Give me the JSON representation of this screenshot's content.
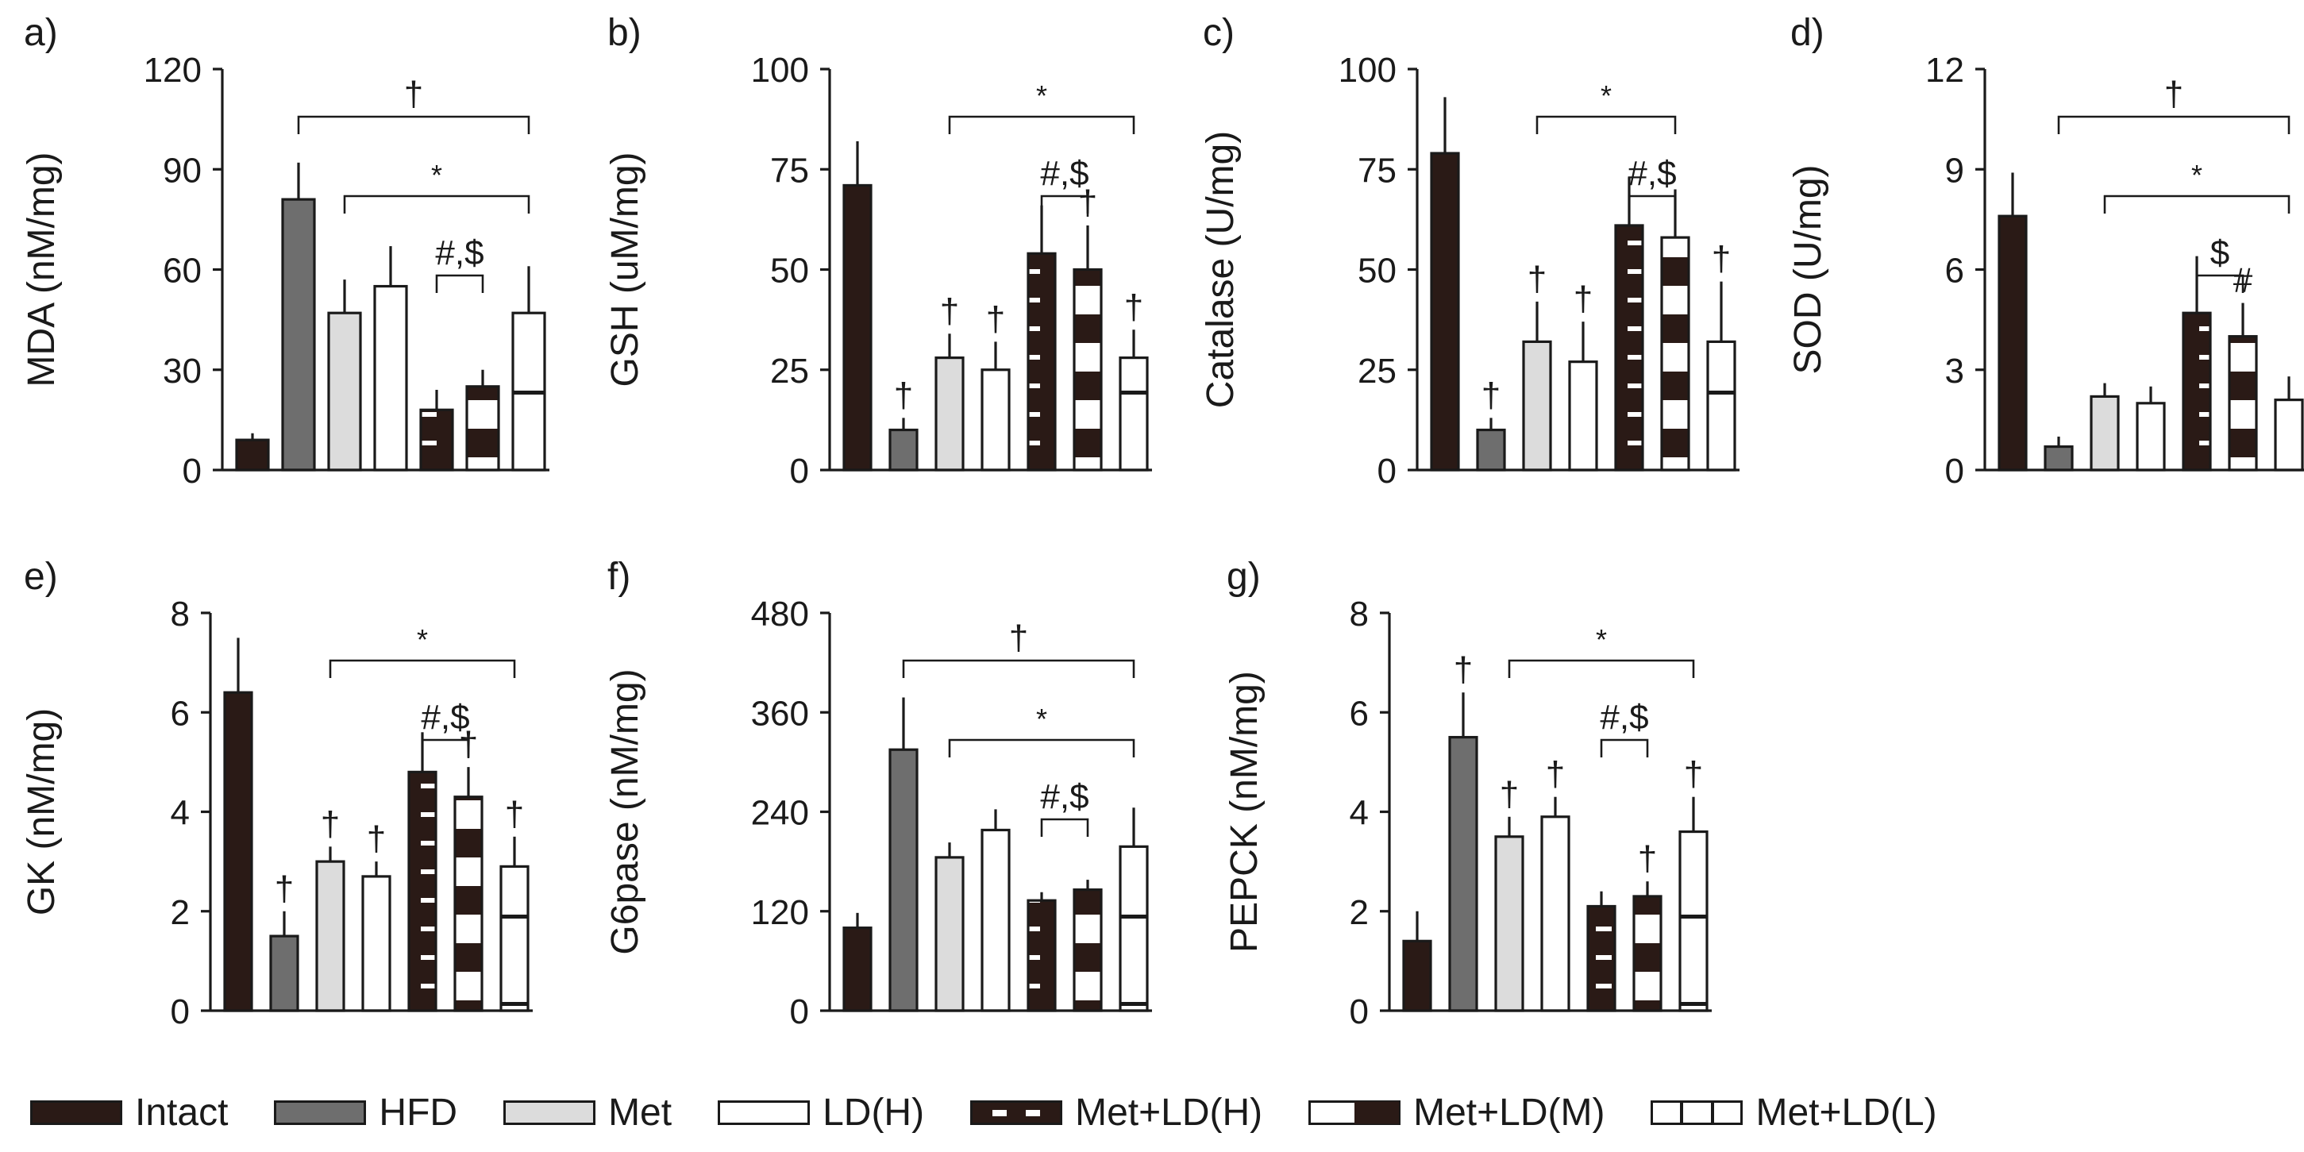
{
  "figure": {
    "groups": [
      "Intact",
      "HFD",
      "Met",
      "LD(H)",
      "Met+LD(H)",
      "Met+LD(M)",
      "Met+LD(L)"
    ],
    "colors": {
      "ink": "#1a1a1a",
      "dark": "#2a1a16",
      "gray": "#6e6e6e",
      "light": "#dcdcdc",
      "white": "#ffffff"
    }
  },
  "chart_data": [
    {
      "type": "bar",
      "panel": "a)",
      "ylabel": "MDA (nM/mg)",
      "ylim": [
        0,
        120
      ],
      "yticks": [
        "0",
        "30",
        "60",
        "90",
        "120"
      ],
      "categories": [
        "Intact",
        "HFD",
        "Met",
        "LD(H)",
        "Met+LD(H)",
        "Met+LD(M)",
        "Met+LD(L)"
      ],
      "values": [
        9,
        81,
        47,
        55,
        18,
        25,
        47
      ],
      "errors": [
        2,
        11,
        10,
        12,
        6,
        5,
        14
      ],
      "marks": [
        "",
        "",
        "",
        "",
        "",
        "",
        ""
      ],
      "brackets": [
        {
          "from": 1,
          "to": 6,
          "label": "†",
          "level": 0
        },
        {
          "from": 2,
          "to": 6,
          "label": "*",
          "level": 1
        },
        {
          "from": 4,
          "to": 5,
          "label": "#,$",
          "level": 2
        }
      ]
    },
    {
      "type": "bar",
      "panel": "b)",
      "ylabel": "GSH (uM/mg)",
      "ylim": [
        0,
        100
      ],
      "yticks": [
        "0",
        "25",
        "50",
        "75",
        "100"
      ],
      "categories": [
        "Intact",
        "HFD",
        "Met",
        "LD(H)",
        "Met+LD(H)",
        "Met+LD(M)",
        "Met+LD(L)"
      ],
      "values": [
        71,
        10,
        28,
        25,
        54,
        50,
        28
      ],
      "errors": [
        11,
        3,
        6,
        7,
        12,
        11,
        7
      ],
      "marks": [
        "",
        "†",
        "†",
        "†",
        "",
        "†",
        "†"
      ],
      "brackets": [
        {
          "from": 2,
          "to": 6,
          "label": "*",
          "level": 0
        },
        {
          "from": 4,
          "to": 5,
          "label": "#,$",
          "level": 1
        }
      ]
    },
    {
      "type": "bar",
      "panel": "c)",
      "ylabel": "Catalase (U/mg)",
      "ylim": [
        0,
        100
      ],
      "yticks": [
        "0",
        "25",
        "50",
        "75",
        "100"
      ],
      "categories": [
        "Intact",
        "HFD",
        "Met",
        "LD(H)",
        "Met+LD(H)",
        "Met+LD(M)",
        "Met+LD(L)"
      ],
      "values": [
        79,
        10,
        32,
        27,
        61,
        58,
        32
      ],
      "errors": [
        14,
        3,
        10,
        10,
        12,
        12,
        15
      ],
      "marks": [
        "",
        "†",
        "†",
        "†",
        "",
        "",
        "†"
      ],
      "brackets": [
        {
          "from": 2,
          "to": 5,
          "label": "*",
          "level": 0
        },
        {
          "from": 4,
          "to": 5,
          "label": "#,$",
          "level": 1
        }
      ]
    },
    {
      "type": "bar",
      "panel": "d)",
      "ylabel": "SOD (U/mg)",
      "ylim": [
        0,
        12
      ],
      "yticks": [
        "0",
        "3",
        "6",
        "9",
        "12"
      ],
      "categories": [
        "Intact",
        "HFD",
        "Met",
        "LD(H)",
        "Met+LD(H)",
        "Met+LD(M)",
        "Met+LD(L)"
      ],
      "values": [
        7.6,
        0.7,
        2.2,
        2.0,
        4.7,
        4.0,
        2.1
      ],
      "errors": [
        1.3,
        0.3,
        0.4,
        0.5,
        1.7,
        1.0,
        0.7
      ],
      "marks": [
        "",
        "",
        "",
        "",
        "",
        "#",
        ""
      ],
      "brackets": [
        {
          "from": 1,
          "to": 6,
          "label": "†",
          "level": 0
        },
        {
          "from": 2,
          "to": 6,
          "label": "*",
          "level": 1
        },
        {
          "from": 4,
          "to": 5,
          "label": "$",
          "level": 2
        }
      ]
    },
    {
      "type": "bar",
      "panel": "e)",
      "ylabel": "GK (nM/mg)",
      "ylim": [
        0,
        8
      ],
      "yticks": [
        "0",
        "2",
        "4",
        "6",
        "8"
      ],
      "categories": [
        "Intact",
        "HFD",
        "Met",
        "LD(H)",
        "Met+LD(H)",
        "Met+LD(M)",
        "Met+LD(L)"
      ],
      "values": [
        6.4,
        1.5,
        3.0,
        2.7,
        4.8,
        4.3,
        2.9
      ],
      "errors": [
        1.1,
        0.5,
        0.3,
        0.3,
        0.8,
        0.6,
        0.6
      ],
      "marks": [
        "",
        "†",
        "†",
        "†",
        "",
        "†",
        "†"
      ],
      "brackets": [
        {
          "from": 2,
          "to": 6,
          "label": "*",
          "level": 0
        },
        {
          "from": 4,
          "to": 5,
          "label": "#,$",
          "level": 1
        }
      ]
    },
    {
      "type": "bar",
      "panel": "f)",
      "ylabel": "G6pase (nM/mg)",
      "ylim": [
        0,
        480
      ],
      "yticks": [
        "0",
        "120",
        "240",
        "360",
        "480"
      ],
      "categories": [
        "Intact",
        "HFD",
        "Met",
        "LD(H)",
        "Met+LD(H)",
        "Met+LD(M)",
        "Met+LD(L)"
      ],
      "values": [
        100,
        315,
        185,
        218,
        133,
        146,
        198
      ],
      "errors": [
        18,
        63,
        18,
        25,
        10,
        12,
        47
      ],
      "marks": [
        "",
        "",
        "",
        "",
        "",
        "",
        ""
      ],
      "brackets": [
        {
          "from": 1,
          "to": 6,
          "label": "†",
          "level": 0
        },
        {
          "from": 2,
          "to": 6,
          "label": "*",
          "level": 1
        },
        {
          "from": 4,
          "to": 5,
          "label": "#,$",
          "level": 2
        }
      ]
    },
    {
      "type": "bar",
      "panel": "g)",
      "ylabel": "PEPCK (nM/mg)",
      "ylim": [
        0,
        8
      ],
      "yticks": [
        "0",
        "2",
        "4",
        "6",
        "8"
      ],
      "categories": [
        "Intact",
        "HFD",
        "Met",
        "LD(H)",
        "Met+LD(H)",
        "Met+LD(M)",
        "Met+LD(L)"
      ],
      "values": [
        1.4,
        5.5,
        3.5,
        3.9,
        2.1,
        2.3,
        3.6
      ],
      "errors": [
        0.6,
        0.9,
        0.4,
        0.4,
        0.3,
        0.3,
        0.7
      ],
      "marks": [
        "",
        "†",
        "†",
        "†",
        "",
        "†",
        "†"
      ],
      "brackets": [
        {
          "from": 2,
          "to": 6,
          "label": "*",
          "level": 0
        },
        {
          "from": 4,
          "to": 5,
          "label": "#,$",
          "level": 1
        }
      ]
    }
  ]
}
